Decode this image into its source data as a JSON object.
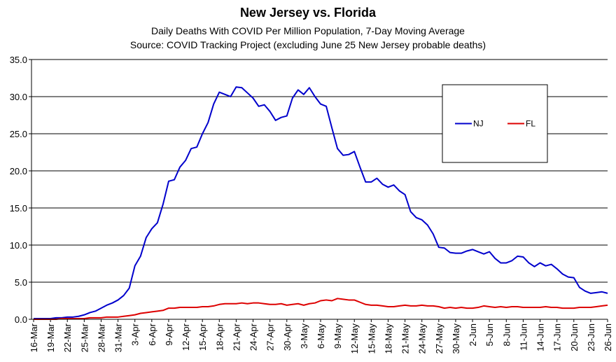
{
  "chart_data": {
    "type": "line",
    "title": "New Jersey vs. Florida",
    "subtitle": [
      "Daily Deaths With COVID Per Million Population, 7-Day Moving Average",
      "Source: COVID Tracking Project (excluding June 25 New Jersey probable deaths)"
    ],
    "categories": [
      "16-Mar",
      null,
      null,
      "19-Mar",
      null,
      null,
      "22-Mar",
      null,
      null,
      "25-Mar",
      null,
      null,
      "28-Mar",
      null,
      null,
      "31-Mar",
      null,
      null,
      "3-Apr",
      null,
      null,
      "6-Apr",
      null,
      null,
      "9-Apr",
      null,
      null,
      "12-Apr",
      null,
      null,
      "15-Apr",
      null,
      null,
      "18-Apr",
      null,
      null,
      "21-Apr",
      null,
      null,
      "24-Apr",
      null,
      null,
      "27-Apr",
      null,
      null,
      "30-Apr",
      null,
      null,
      "3-May",
      null,
      null,
      "6-May",
      null,
      null,
      "9-May",
      null,
      null,
      "12-May",
      null,
      null,
      "15-May",
      null,
      null,
      "18-May",
      null,
      null,
      "21-May",
      null,
      null,
      "24-May",
      null,
      null,
      "27-May",
      null,
      null,
      "30-May",
      null,
      null,
      "2-Jun",
      null,
      null,
      "5-Jun",
      null,
      null,
      "8-Jun",
      null,
      null,
      "11-Jun",
      null,
      null,
      "14-Jun",
      null,
      null,
      "17-Jun",
      null,
      null,
      "20-Jun",
      null,
      null,
      "23-Jun",
      null,
      null,
      "26-Jun"
    ],
    "series": [
      {
        "name": "NJ",
        "color": "#0000cc",
        "values": [
          0.1,
          0.1,
          0.1,
          0.1,
          0.2,
          0.2,
          0.3,
          0.3,
          0.4,
          0.6,
          0.9,
          1.1,
          1.5,
          1.9,
          2.2,
          2.6,
          3.2,
          4.2,
          7.2,
          8.5,
          11.0,
          12.2,
          13.0,
          15.5,
          18.6,
          18.8,
          20.5,
          21.4,
          23.0,
          23.2,
          25.0,
          26.5,
          29.0,
          30.6,
          30.3,
          30.0,
          31.3,
          31.2,
          30.5,
          29.8,
          28.7,
          28.9,
          28.0,
          26.8,
          27.2,
          27.4,
          29.8,
          30.9,
          30.3,
          31.2,
          30.0,
          29.0,
          28.7,
          25.8,
          23.0,
          22.1,
          22.2,
          22.6,
          20.5,
          18.5,
          18.5,
          19.0,
          18.2,
          17.8,
          18.1,
          17.3,
          16.8,
          14.5,
          13.7,
          13.4,
          12.7,
          11.5,
          9.7,
          9.6,
          9.0,
          8.9,
          8.9,
          9.2,
          9.4,
          9.1,
          8.8,
          9.1,
          8.2,
          7.6,
          7.6,
          7.9,
          8.5,
          8.4,
          7.6,
          7.1,
          7.6,
          7.2,
          7.4,
          6.8,
          6.1,
          5.7,
          5.6,
          4.3,
          3.8,
          3.5,
          3.6,
          3.7,
          3.5
        ]
      },
      {
        "name": "FL",
        "color": "#dd0000",
        "values": [
          0,
          0,
          0,
          0,
          0,
          0.1,
          0.1,
          0.1,
          0.1,
          0.1,
          0.2,
          0.2,
          0.2,
          0.3,
          0.3,
          0.3,
          0.4,
          0.5,
          0.6,
          0.8,
          0.9,
          1.0,
          1.1,
          1.2,
          1.5,
          1.5,
          1.6,
          1.6,
          1.6,
          1.6,
          1.7,
          1.7,
          1.8,
          2.0,
          2.1,
          2.1,
          2.1,
          2.2,
          2.1,
          2.2,
          2.2,
          2.1,
          2.0,
          2.0,
          2.1,
          1.9,
          2.0,
          2.1,
          1.9,
          2.1,
          2.2,
          2.5,
          2.6,
          2.5,
          2.8,
          2.7,
          2.6,
          2.6,
          2.3,
          2.0,
          1.9,
          1.9,
          1.8,
          1.7,
          1.7,
          1.8,
          1.9,
          1.8,
          1.8,
          1.9,
          1.8,
          1.8,
          1.7,
          1.5,
          1.6,
          1.5,
          1.6,
          1.5,
          1.5,
          1.6,
          1.8,
          1.7,
          1.6,
          1.7,
          1.6,
          1.7,
          1.7,
          1.6,
          1.6,
          1.6,
          1.6,
          1.7,
          1.6,
          1.6,
          1.5,
          1.5,
          1.5,
          1.6,
          1.6,
          1.6,
          1.7,
          1.8,
          1.9
        ]
      }
    ],
    "ylim": [
      0,
      35
    ],
    "yticks": [
      {
        "value": 0,
        "label": "0.0"
      },
      {
        "value": 5,
        "label": "5.0"
      },
      {
        "value": 10,
        "label": "10.0"
      },
      {
        "value": 15,
        "label": "15.0"
      },
      {
        "value": 20,
        "label": "20.0"
      },
      {
        "value": 25,
        "label": "25.0"
      },
      {
        "value": 30,
        "label": "30.0"
      },
      {
        "value": 35,
        "label": "35.0"
      }
    ],
    "grid": true,
    "legend": "upper right"
  }
}
